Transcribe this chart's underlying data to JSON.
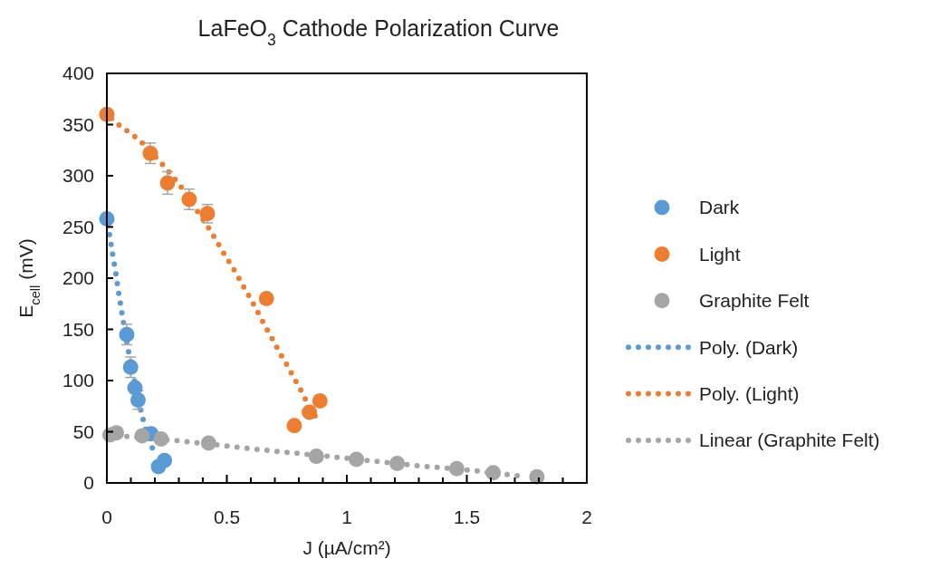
{
  "chart_data": {
    "type": "scatter",
    "title": "LaFeO$_{3}$ Cathode Polarization Curve",
    "xlabel": "J (µA/cm²)",
    "ylabel": "E$_{cell}$ (mV)",
    "xlim": [
      0,
      2
    ],
    "ylim": [
      0,
      400
    ],
    "xticks": [
      0,
      {
        "value": 0.1,
        "label": null
      },
      {
        "value": 0.2,
        "label": null
      },
      {
        "value": 0.3,
        "label": null
      },
      {
        "value": 0.4,
        "label": null
      },
      0.5,
      {
        "value": 0.6,
        "label": null
      },
      {
        "value": 0.7,
        "label": null
      },
      {
        "value": 0.8,
        "label": null
      },
      {
        "value": 0.9,
        "label": null
      },
      1,
      {
        "value": 1.1,
        "label": null
      },
      {
        "value": 1.2,
        "label": null
      },
      {
        "value": 1.3,
        "label": null
      },
      {
        "value": 1.4,
        "label": null
      },
      1.5,
      {
        "value": 1.6,
        "label": null
      },
      {
        "value": 1.7,
        "label": null
      },
      {
        "value": 1.8,
        "label": null
      },
      {
        "value": 1.9,
        "label": null
      },
      2
    ],
    "yticks": [
      0,
      50,
      100,
      150,
      200,
      250,
      300,
      350,
      400
    ],
    "grid": false,
    "legend": "right",
    "series": [
      {
        "name": "Dark",
        "marker": "circle",
        "color": "#5b9bd5",
        "x": [
          0.0,
          0.083,
          0.099,
          0.117,
          0.13,
          0.184,
          0.215,
          0.24
        ],
        "values": [
          258,
          145,
          113,
          93,
          81,
          48,
          16,
          22
        ],
        "errors": [
          null,
          10,
          10,
          null,
          9,
          null,
          null,
          null
        ]
      },
      {
        "name": "Light",
        "marker": "circle",
        "color": "#ed7d31",
        "x": [
          0.0,
          0.181,
          0.253,
          0.343,
          0.419,
          0.665,
          0.888,
          0.844,
          0.781
        ],
        "values": [
          360,
          322,
          293,
          277,
          263,
          180,
          80,
          69,
          56
        ],
        "errors": [
          null,
          10,
          11,
          10,
          9,
          null,
          null,
          null,
          null
        ]
      },
      {
        "name": "Graphite Felt",
        "marker": "circle",
        "color": "#a5a5a5",
        "x": [
          0.013,
          0.04,
          0.147,
          0.226,
          0.424,
          0.873,
          1.04,
          1.21,
          1.458,
          1.61,
          1.792
        ],
        "values": [
          47,
          49,
          46,
          43,
          39,
          26,
          23,
          19,
          14,
          10,
          6
        ]
      },
      {
        "name": "Poly. (Dark)",
        "type": "line",
        "marker": "none",
        "line_style": "dotted",
        "color": "#5b9bd5",
        "x": [
          0.005,
          0.01,
          0.02,
          0.03,
          0.04,
          0.048,
          0.058,
          0.068,
          0.089,
          0.112,
          0.137,
          0.152,
          0.167,
          0.19
        ],
        "values": [
          252,
          244,
          229,
          215,
          201,
          187,
          173,
          158,
          130,
          103,
          75,
          61,
          47,
          34
        ]
      },
      {
        "name": "Poly. (Light)",
        "type": "line",
        "marker": "none",
        "line_style": "dotted",
        "color": "#ed7d31",
        "x": [
          0.02,
          0.058,
          0.108,
          0.153,
          0.236,
          0.276,
          0.313,
          0.381,
          0.416,
          0.448,
          0.48,
          0.512,
          0.543,
          0.574,
          0.603,
          0.633,
          0.662,
          0.691,
          0.721,
          0.751,
          0.781,
          0.81,
          0.838,
          0.869
        ],
        "values": [
          356,
          348,
          340,
          331,
          310,
          299,
          288,
          264,
          252,
          240,
          227,
          215,
          203,
          190,
          178,
          165,
          152,
          140,
          127,
          115,
          102,
          90,
          77,
          65
        ]
      },
      {
        "name": "Linear (Graphite Felt)",
        "type": "line",
        "marker": "none",
        "line_style": "dotted",
        "color": "#a5a5a5",
        "x": [
          0.0,
          0.309,
          0.615,
          0.92,
          1.287,
          1.53,
          1.713
        ],
        "values": [
          47,
          41,
          33,
          26,
          17,
          12,
          7
        ]
      }
    ]
  }
}
